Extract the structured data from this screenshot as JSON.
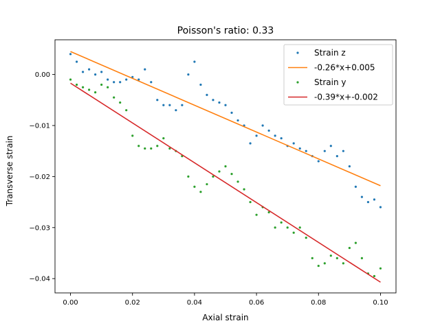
{
  "chart_data": {
    "type": "scatter",
    "title": "Poisson's ratio: 0.33",
    "xlabel": "Axial strain",
    "ylabel": "Transverse strain",
    "xlim": [
      -0.005,
      0.105
    ],
    "ylim": [
      -0.0428,
      0.0068
    ],
    "xticks": [
      0.0,
      0.02,
      0.04,
      0.06,
      0.08,
      0.1
    ],
    "xtick_labels": [
      "0.00",
      "0.02",
      "0.04",
      "0.06",
      "0.08",
      "0.10"
    ],
    "yticks": [
      0.0,
      -0.01,
      -0.02,
      -0.03,
      -0.04
    ],
    "ytick_labels": [
      "0.00",
      "−0.01",
      "−0.02",
      "−0.03",
      "−0.04"
    ],
    "grid": false,
    "legend_position": "top-right",
    "series": [
      {
        "name": "Strain z",
        "kind": "scatter",
        "color": "#1f77b4",
        "x": [
          0.0,
          0.002,
          0.004,
          0.006,
          0.008,
          0.01,
          0.012,
          0.014,
          0.016,
          0.018,
          0.02,
          0.022,
          0.024,
          0.026,
          0.028,
          0.03,
          0.032,
          0.034,
          0.036,
          0.038,
          0.04,
          0.042,
          0.044,
          0.046,
          0.048,
          0.05,
          0.052,
          0.054,
          0.056,
          0.058,
          0.06,
          0.062,
          0.064,
          0.066,
          0.068,
          0.07,
          0.072,
          0.074,
          0.076,
          0.078,
          0.08,
          0.082,
          0.084,
          0.086,
          0.088,
          0.09,
          0.092,
          0.094,
          0.096,
          0.098,
          0.1
        ],
        "y": [
          0.004,
          0.0025,
          0.0005,
          0.001,
          0.0,
          0.0005,
          -0.001,
          -0.0015,
          -0.0015,
          -0.001,
          -0.0005,
          -0.001,
          0.001,
          -0.0015,
          -0.005,
          -0.006,
          -0.006,
          -0.007,
          -0.006,
          0.0,
          0.0025,
          -0.002,
          -0.004,
          -0.005,
          -0.0055,
          -0.006,
          -0.0075,
          -0.009,
          -0.01,
          -0.0135,
          -0.012,
          -0.01,
          -0.011,
          -0.012,
          -0.0125,
          -0.014,
          -0.0135,
          -0.0145,
          -0.015,
          -0.016,
          -0.017,
          -0.015,
          -0.014,
          -0.016,
          -0.015,
          -0.018,
          -0.022,
          -0.024,
          -0.025,
          -0.0245,
          -0.026
        ]
      },
      {
        "name": "-0.26*x+0.005",
        "kind": "line",
        "color": "#ff7f0e",
        "x": [
          0.0,
          0.1
        ],
        "y": [
          0.0045,
          -0.0218
        ]
      },
      {
        "name": "Strain y",
        "kind": "scatter",
        "color": "#2ca02c",
        "x": [
          0.0,
          0.002,
          0.004,
          0.006,
          0.008,
          0.01,
          0.012,
          0.014,
          0.016,
          0.018,
          0.02,
          0.022,
          0.024,
          0.026,
          0.028,
          0.03,
          0.032,
          0.034,
          0.036,
          0.038,
          0.04,
          0.042,
          0.044,
          0.046,
          0.048,
          0.05,
          0.052,
          0.054,
          0.056,
          0.058,
          0.06,
          0.062,
          0.064,
          0.066,
          0.068,
          0.07,
          0.072,
          0.074,
          0.076,
          0.078,
          0.08,
          0.082,
          0.084,
          0.086,
          0.088,
          0.09,
          0.092,
          0.094,
          0.096,
          0.098,
          0.1
        ],
        "y": [
          -0.001,
          -0.002,
          -0.0025,
          -0.003,
          -0.0035,
          -0.002,
          -0.0025,
          -0.0045,
          -0.0055,
          -0.007,
          -0.012,
          -0.014,
          -0.0145,
          -0.0145,
          -0.014,
          -0.0125,
          -0.0145,
          -0.015,
          -0.016,
          -0.02,
          -0.022,
          -0.023,
          -0.0215,
          -0.02,
          -0.019,
          -0.018,
          -0.0195,
          -0.021,
          -0.0225,
          -0.025,
          -0.0275,
          -0.026,
          -0.027,
          -0.03,
          -0.029,
          -0.03,
          -0.031,
          -0.03,
          -0.032,
          -0.036,
          -0.0375,
          -0.037,
          -0.0355,
          -0.036,
          -0.037,
          -0.034,
          -0.033,
          -0.036,
          -0.039,
          -0.0395,
          -0.038
        ]
      },
      {
        "name": "-0.39*x+-0.002",
        "kind": "line",
        "color": "#d62728",
        "x": [
          0.0,
          0.1
        ],
        "y": [
          -0.0017,
          -0.0407
        ]
      }
    ]
  }
}
